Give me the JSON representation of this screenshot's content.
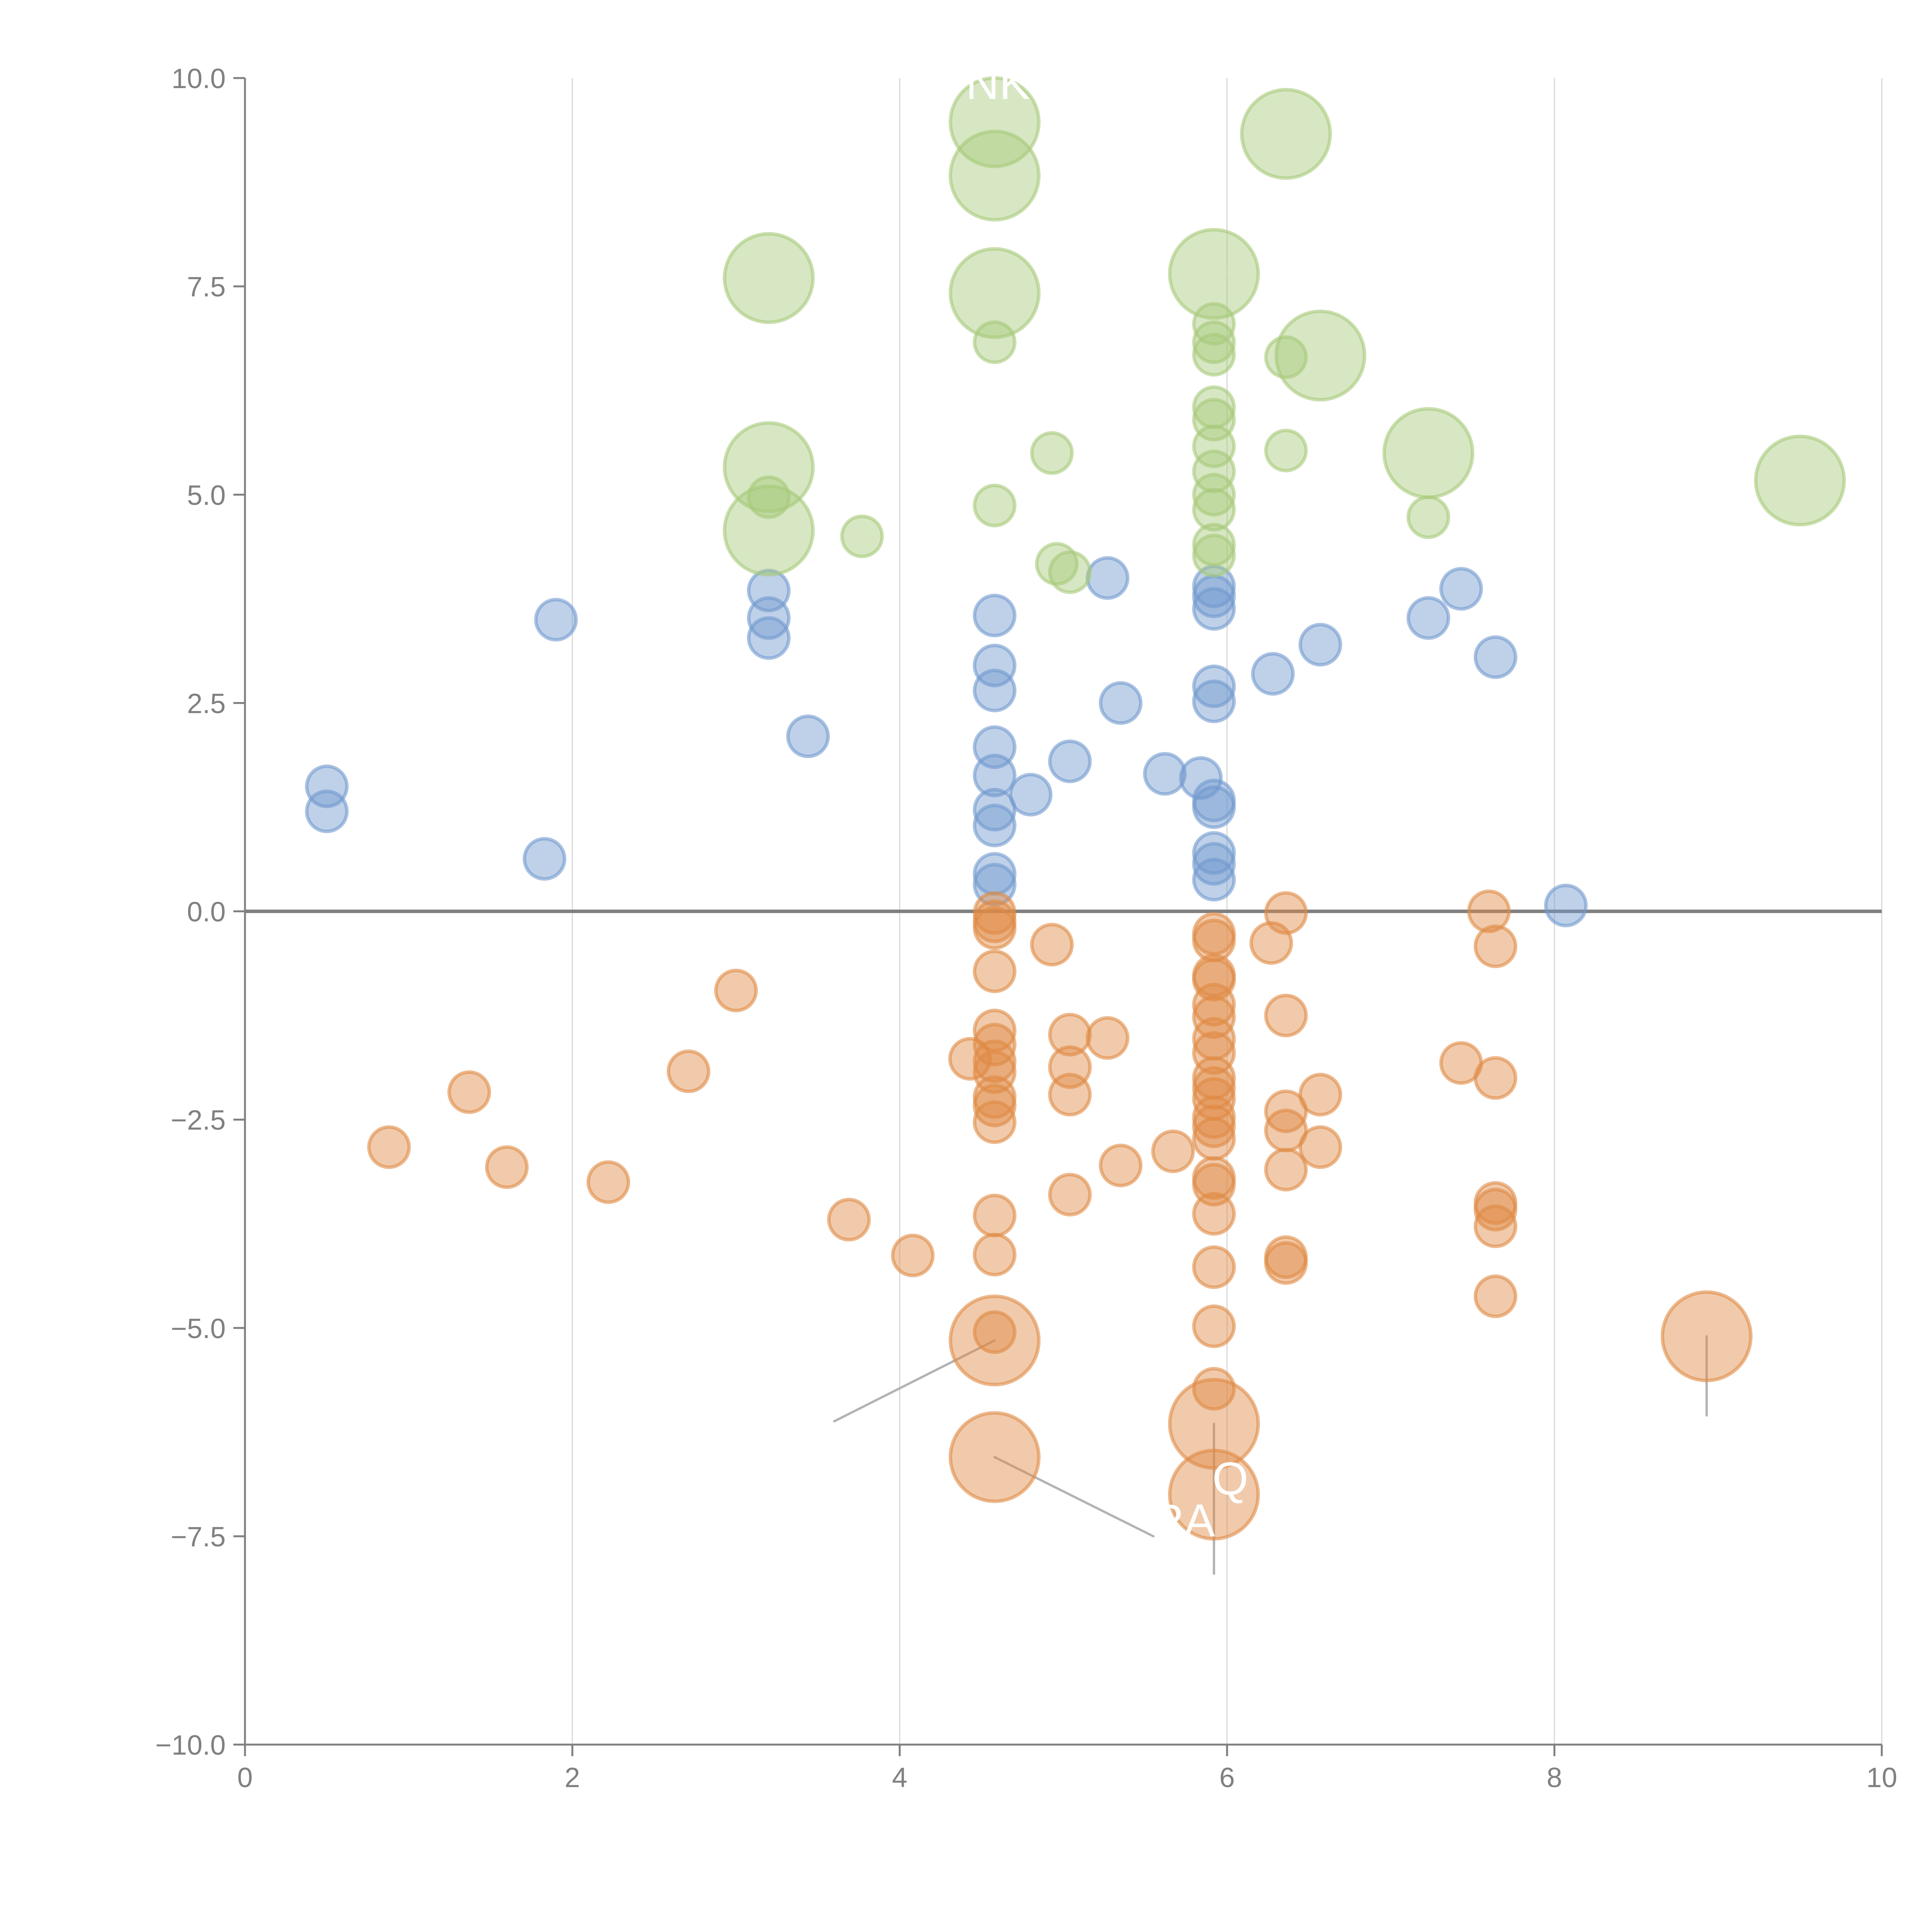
{
  "chart_data": {
    "type": "scatter",
    "title": "",
    "xlabel": "",
    "ylabel": "",
    "xlim": [
      0,
      10
    ],
    "ylim": [
      -10,
      10
    ],
    "grid": "vertical",
    "zero_line": true,
    "x_ticks": [
      "0",
      "2",
      "4",
      "6",
      "8",
      "10"
    ],
    "y_ticks": [
      "−10.0",
      "−7.5",
      "−5.0",
      "−2.5",
      "0.0",
      "2.5",
      "5.0",
      "7.5",
      "10.0"
    ],
    "colors": {
      "blue": "#7199cf",
      "orange": "#e08a45",
      "green": "#a6c97a",
      "axis": "#808080",
      "grid": "#d9d9d9",
      "leader": "#b3b3b3"
    },
    "series": [
      {
        "name": "blue",
        "color": "#7199cf",
        "points": [
          [
            0.5,
            1.5,
            1
          ],
          [
            0.5,
            1.2,
            1
          ],
          [
            1.9,
            3.5,
            1
          ],
          [
            1.83,
            0.63,
            1
          ],
          [
            3.2,
            3.85,
            1
          ],
          [
            3.2,
            3.52,
            1
          ],
          [
            3.2,
            3.28,
            1
          ],
          [
            3.44,
            2.1,
            1
          ],
          [
            4.58,
            3.55,
            1
          ],
          [
            4.58,
            2.95,
            1
          ],
          [
            4.58,
            2.65,
            1
          ],
          [
            4.58,
            1.97,
            1
          ],
          [
            4.58,
            1.63,
            1
          ],
          [
            4.58,
            1.22,
            1
          ],
          [
            4.58,
            1.03,
            1
          ],
          [
            4.58,
            0.45,
            1
          ],
          [
            4.58,
            0.32,
            1
          ],
          [
            4.8,
            1.4,
            1
          ],
          [
            5.04,
            1.8,
            1
          ],
          [
            5.27,
            4.0,
            1
          ],
          [
            5.35,
            2.5,
            1
          ],
          [
            5.62,
            1.65,
            1
          ],
          [
            5.84,
            1.6,
            1
          ],
          [
            5.92,
            3.9,
            1
          ],
          [
            5.92,
            3.78,
            1
          ],
          [
            5.92,
            3.63,
            1
          ],
          [
            5.92,
            2.7,
            1
          ],
          [
            5.92,
            2.52,
            1
          ],
          [
            5.92,
            1.33,
            1
          ],
          [
            5.92,
            1.25,
            1
          ],
          [
            5.92,
            0.7,
            1
          ],
          [
            5.92,
            0.57,
            1
          ],
          [
            5.92,
            0.38,
            1
          ],
          [
            6.28,
            2.85,
            1
          ],
          [
            6.57,
            3.2,
            1
          ],
          [
            7.23,
            3.52,
            1
          ],
          [
            7.43,
            3.87,
            1
          ],
          [
            7.64,
            3.05,
            1
          ],
          [
            8.07,
            0.07,
            1
          ]
        ]
      },
      {
        "name": "orange",
        "color": "#e08a45",
        "points": [
          [
            0.88,
            -2.83,
            1
          ],
          [
            1.37,
            -2.17,
            1
          ],
          [
            1.6,
            -3.07,
            1
          ],
          [
            2.22,
            -3.25,
            1
          ],
          [
            2.71,
            -1.92,
            1
          ],
          [
            3.0,
            -0.95,
            1
          ],
          [
            3.69,
            -3.7,
            1
          ],
          [
            4.08,
            -4.13,
            1
          ],
          [
            4.43,
            -1.77,
            1
          ],
          [
            4.58,
            -0.02,
            1
          ],
          [
            4.58,
            -0.12,
            1
          ],
          [
            4.58,
            -0.2,
            1
          ],
          [
            4.58,
            -0.72,
            1
          ],
          [
            4.58,
            -1.43,
            1
          ],
          [
            4.58,
            -1.6,
            1
          ],
          [
            4.58,
            -1.8,
            1
          ],
          [
            4.58,
            -1.93,
            1
          ],
          [
            4.58,
            -2.23,
            1
          ],
          [
            4.58,
            -2.33,
            1
          ],
          [
            4.58,
            -2.53,
            1
          ],
          [
            4.58,
            -3.65,
            1
          ],
          [
            4.58,
            -4.12,
            1
          ],
          [
            4.58,
            -5.05,
            1
          ],
          [
            4.58,
            -5.15,
            2.2
          ],
          [
            4.58,
            -6.55,
            2.2
          ],
          [
            4.93,
            -0.4,
            1
          ],
          [
            5.04,
            -1.48,
            1
          ],
          [
            5.04,
            -1.87,
            1
          ],
          [
            5.04,
            -2.2,
            1
          ],
          [
            5.04,
            -3.4,
            1
          ],
          [
            5.27,
            -1.52,
            1
          ],
          [
            5.35,
            -3.05,
            1
          ],
          [
            5.67,
            -2.88,
            1
          ],
          [
            5.92,
            -0.27,
            1
          ],
          [
            5.92,
            -0.35,
            1
          ],
          [
            5.92,
            -0.77,
            1
          ],
          [
            5.92,
            -0.82,
            1
          ],
          [
            5.92,
            -1.12,
            1
          ],
          [
            5.92,
            -1.27,
            1
          ],
          [
            5.92,
            -1.53,
            1
          ],
          [
            5.92,
            -1.7,
            1
          ],
          [
            5.92,
            -2.0,
            1
          ],
          [
            5.92,
            -2.12,
            1
          ],
          [
            5.92,
            -2.25,
            1
          ],
          [
            5.92,
            -2.47,
            1
          ],
          [
            5.92,
            -2.58,
            1
          ],
          [
            5.92,
            -2.73,
            1
          ],
          [
            5.92,
            -3.2,
            1
          ],
          [
            5.92,
            -3.28,
            1
          ],
          [
            5.92,
            -3.63,
            1
          ],
          [
            5.92,
            -4.27,
            1
          ],
          [
            5.92,
            -4.98,
            1
          ],
          [
            5.92,
            -5.73,
            1
          ],
          [
            5.92,
            -6.15,
            2.2
          ],
          [
            5.92,
            -7.0,
            2.2
          ],
          [
            6.27,
            -0.38,
            1
          ],
          [
            6.36,
            -0.02,
            1
          ],
          [
            6.36,
            -1.25,
            1
          ],
          [
            6.36,
            -2.4,
            1
          ],
          [
            6.36,
            -2.63,
            1
          ],
          [
            6.36,
            -3.1,
            1
          ],
          [
            6.36,
            -4.15,
            1
          ],
          [
            6.36,
            -4.22,
            1
          ],
          [
            6.57,
            -2.2,
            1
          ],
          [
            6.57,
            -2.83,
            1
          ],
          [
            7.43,
            -1.82,
            1
          ],
          [
            7.6,
            0.0,
            1
          ],
          [
            7.64,
            -0.42,
            1
          ],
          [
            7.64,
            -2.0,
            1
          ],
          [
            7.64,
            -3.5,
            1
          ],
          [
            7.64,
            -3.58,
            1
          ],
          [
            7.64,
            -3.78,
            1
          ],
          [
            7.64,
            -4.62,
            1
          ],
          [
            8.93,
            -5.1,
            2.2
          ]
        ]
      },
      {
        "name": "green",
        "color": "#a6c97a",
        "points": [
          [
            3.2,
            7.6,
            2.2
          ],
          [
            3.2,
            5.33,
            2.2
          ],
          [
            3.2,
            4.97,
            1
          ],
          [
            3.2,
            4.57,
            2.2
          ],
          [
            3.77,
            4.5,
            1
          ],
          [
            4.58,
            9.47,
            2.2
          ],
          [
            4.58,
            8.83,
            2.2
          ],
          [
            4.58,
            7.42,
            2.2
          ],
          [
            4.58,
            6.83,
            1
          ],
          [
            4.58,
            4.87,
            1
          ],
          [
            4.93,
            5.5,
            1
          ],
          [
            4.96,
            4.17,
            1
          ],
          [
            5.04,
            4.07,
            1
          ],
          [
            5.92,
            7.65,
            2.2
          ],
          [
            5.92,
            7.05,
            1
          ],
          [
            5.92,
            6.83,
            1
          ],
          [
            5.92,
            6.68,
            1
          ],
          [
            5.92,
            6.05,
            1
          ],
          [
            5.92,
            5.9,
            1
          ],
          [
            5.92,
            5.58,
            1
          ],
          [
            5.92,
            5.28,
            1
          ],
          [
            5.92,
            5.0,
            1
          ],
          [
            5.92,
            4.82,
            1
          ],
          [
            5.92,
            4.4,
            1
          ],
          [
            5.92,
            4.27,
            1
          ],
          [
            6.36,
            9.33,
            2.2
          ],
          [
            6.36,
            6.65,
            1
          ],
          [
            6.36,
            5.53,
            1
          ],
          [
            6.57,
            6.67,
            2.2
          ],
          [
            7.23,
            5.5,
            2.2
          ],
          [
            7.23,
            4.73,
            1
          ],
          [
            9.5,
            5.17,
            2.2
          ]
        ]
      }
    ],
    "leaders": [
      [
        3.2,
        7.6,
        2.5,
        7.68
      ],
      [
        3.2,
        5.33,
        3.7,
        5.55
      ],
      [
        3.2,
        4.57,
        3.7,
        4.35
      ],
      [
        4.58,
        9.47,
        4.2,
        9.75
      ],
      [
        4.58,
        8.83,
        4.95,
        9.05
      ],
      [
        4.58,
        7.42,
        5.05,
        7.5
      ],
      [
        5.92,
        7.65,
        6.3,
        7.75
      ],
      [
        6.36,
        9.33,
        6.8,
        9.45
      ],
      [
        6.57,
        6.67,
        6.62,
        6.1
      ],
      [
        7.23,
        5.5,
        7.6,
        5.2
      ],
      [
        9.5,
        5.17,
        9.45,
        5.65
      ],
      [
        4.58,
        -5.15,
        3.6,
        -6.12
      ],
      [
        4.58,
        -6.55,
        5.55,
        -7.5
      ],
      [
        5.92,
        -6.15,
        5.92,
        -7.95
      ],
      [
        8.93,
        -5.1,
        8.93,
        -6.05
      ]
    ],
    "annotations": [
      {
        "text": "NK",
        "x": 4.6,
        "y": 9.75
      },
      {
        "text": "Q",
        "x": 6.02,
        "y": -7.0
      },
      {
        "text": "RA",
        "x": 5.73,
        "y": -7.5
      }
    ]
  }
}
